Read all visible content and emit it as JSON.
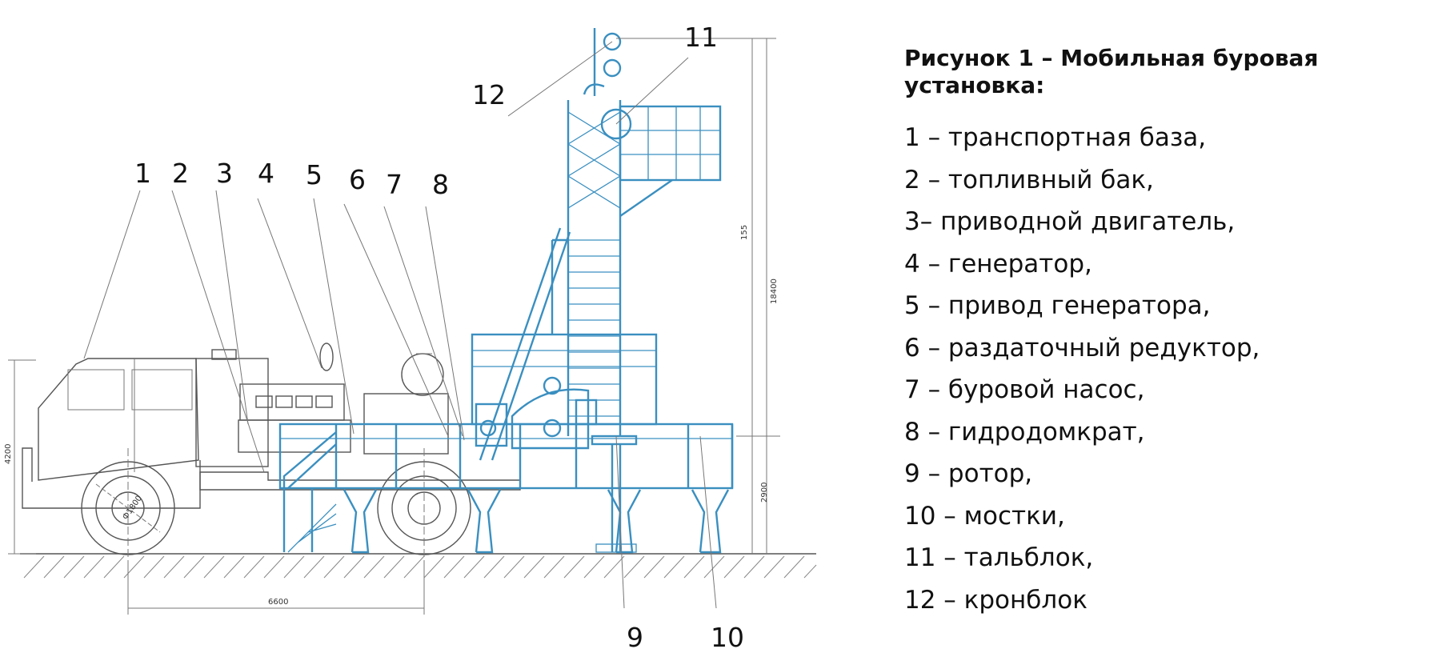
{
  "caption": {
    "title": "Рисунок 1 – Мобильная буровая установка:",
    "items": [
      "1 – транспортная база,",
      "2 – топливный бак,",
      "3– приводной двигатель,",
      "4 – генератор,",
      "5 – привод генератора,",
      "6 – раздаточный редуктор,",
      "7 – буровой насос,",
      "8 – гидродомкрат,",
      "9 – ротор,",
      "10 – мостки,",
      "11 – тальблок,",
      "12 – кронблок"
    ]
  },
  "callouts": [
    "1",
    "2",
    "3",
    "4",
    "5",
    "6",
    "7",
    "8",
    "9",
    "10",
    "11",
    "12"
  ],
  "dimensions": {
    "total_height": "18400",
    "cab_height": "4200",
    "platform_height": "2900",
    "wheelbase": "6600",
    "wheel_diameter": "Ф1800",
    "mast_section": "155"
  },
  "colors": {
    "equipment": "#3a8fc0",
    "vehicle": "#555555"
  }
}
